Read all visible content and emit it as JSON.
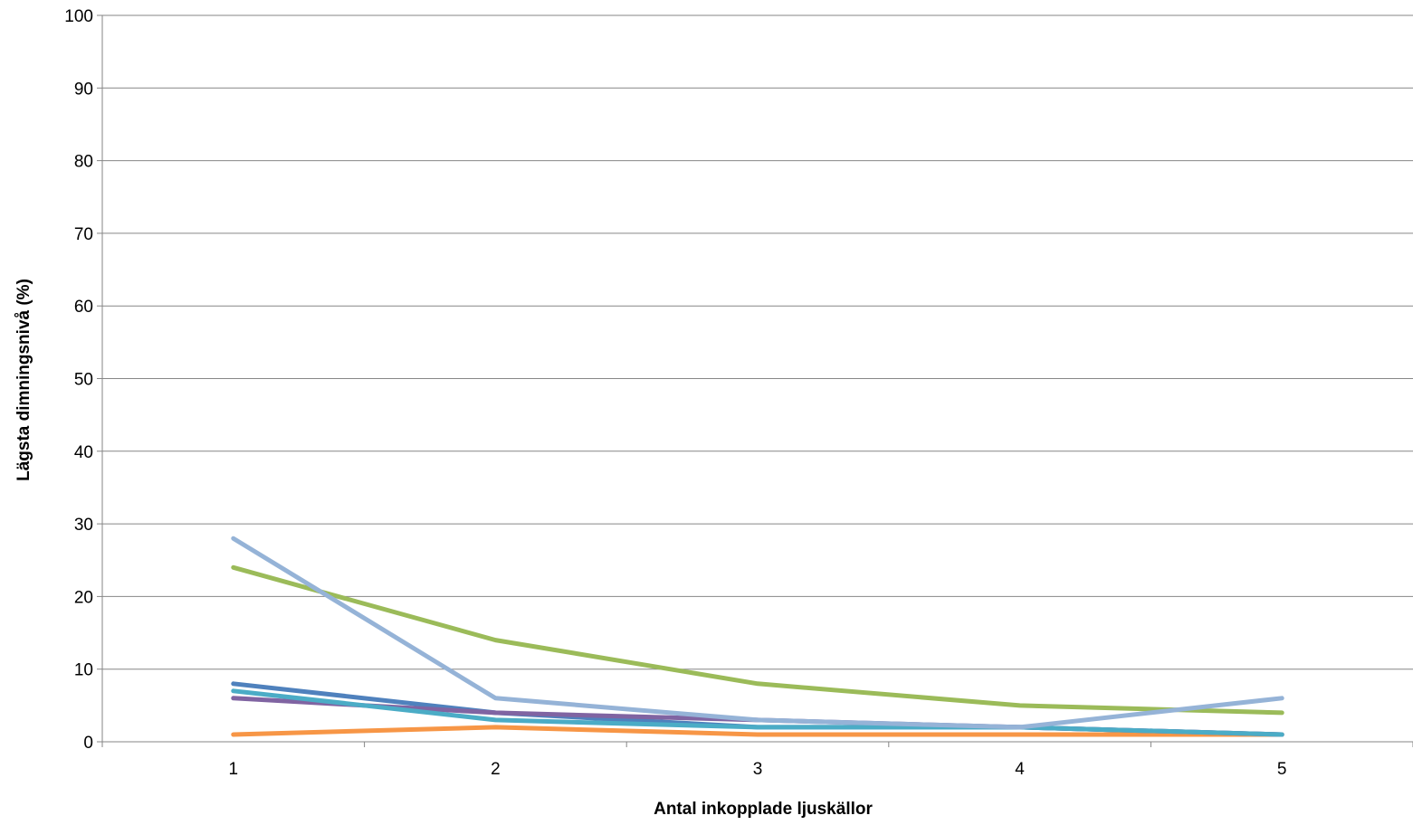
{
  "chart_data": {
    "type": "line",
    "title": "",
    "xlabel": "Antal inkopplade ljuskällor",
    "ylabel": "Lägsta dimningsnivå (%)",
    "categories": [
      "1",
      "2",
      "3",
      "4",
      "5"
    ],
    "ylim": [
      0,
      100
    ],
    "yticks": [
      "0",
      "10",
      "20",
      "30",
      "40",
      "50",
      "60",
      "70",
      "80",
      "90",
      "100"
    ],
    "grid": true,
    "legend": "none",
    "series": [
      {
        "color": "#4f81bd",
        "values": [
          8,
          4,
          2,
          2,
          1
        ]
      },
      {
        "color": "#f79646",
        "values": [
          1,
          2,
          1,
          1,
          1
        ]
      },
      {
        "color": "#9bbb59",
        "values": [
          24,
          14,
          8,
          5,
          4
        ]
      },
      {
        "color": "#8064a2",
        "values": [
          6,
          4,
          3,
          2,
          1
        ]
      },
      {
        "color": "#4bacc6",
        "values": [
          7,
          3,
          2,
          2,
          1
        ]
      },
      {
        "color": "#95b3d7",
        "values": [
          28,
          6,
          3,
          2,
          6
        ]
      }
    ]
  }
}
